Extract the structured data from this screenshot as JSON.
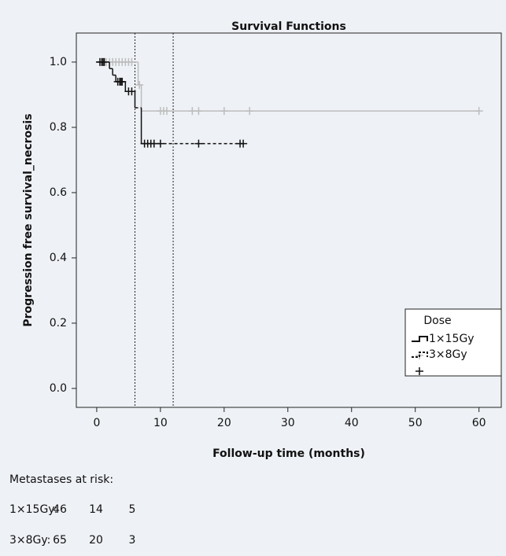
{
  "chart_data": {
    "type": "survival",
    "title": "Survival Functions",
    "x_label": "Follow-up time (months)",
    "y_label": "Progression free survival_necrosis",
    "xlim": [
      -3.2,
      63.5
    ],
    "ylim": [
      -0.058,
      1.089
    ],
    "xticks": [
      0,
      10,
      20,
      30,
      40,
      50,
      60
    ],
    "yticks": [
      {
        "value": 0,
        "label": "0.0"
      },
      0.2,
      0.4,
      0.6,
      0.8,
      {
        "value": 1,
        "label": "1.0"
      }
    ],
    "vlines": [
      6,
      12
    ],
    "legend_title": "Dose",
    "series": [
      {
        "name": "1×15Gy",
        "color": "#bdbdbd",
        "dash": false,
        "x": [
          0,
          6.5,
          7
        ],
        "values": [
          1.0,
          0.93,
          0.85
        ],
        "censor_x": [
          1,
          1.5,
          2,
          2.5,
          3,
          3.5,
          4,
          4.5,
          5,
          5.5,
          6.7,
          10,
          10.5,
          11,
          15,
          16,
          20,
          24,
          60
        ],
        "censor_values": [
          1.0,
          1.0,
          1.0,
          1.0,
          1.0,
          1.0,
          1.0,
          1.0,
          1.0,
          1.0,
          0.93,
          0.85,
          0.85,
          0.85,
          0.85,
          0.85,
          0.85,
          0.85,
          0.85
        ]
      },
      {
        "name": "3×8Gy",
        "color": "#111111",
        "dash": true,
        "x": [
          0,
          2,
          2.5,
          3,
          4.5,
          6,
          7
        ],
        "values": [
          1.0,
          0.98,
          0.96,
          0.94,
          0.91,
          0.86,
          0.75
        ],
        "censor_x": [
          0.5,
          0.8,
          1,
          1.2,
          3.3,
          3.6,
          3.8,
          4,
          5,
          5.5,
          7.5,
          8,
          8.5,
          9,
          10,
          16,
          22.5,
          23
        ],
        "censor_values": [
          1.0,
          1.0,
          1.0,
          1.0,
          0.94,
          0.94,
          0.94,
          0.94,
          0.91,
          0.91,
          0.75,
          0.75,
          0.75,
          0.75,
          0.75,
          0.75,
          0.75,
          0.75
        ]
      }
    ]
  },
  "risk_table": {
    "title": "Metastases at risk:",
    "rows": [
      {
        "label": "1×15Gy:",
        "counts": [
          46,
          14,
          5
        ]
      },
      {
        "label": "3×8Gy:",
        "counts": [
          65,
          20,
          3
        ]
      }
    ]
  }
}
